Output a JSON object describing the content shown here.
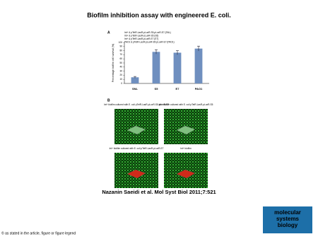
{
  "title": "Biofilm inhibition assay with engineered E. coli.",
  "chart_data": {
    "type": "bar",
    "panel": "A",
    "legend_lines": [
      "Int+ & pTetR-LasR-pLuxR-S5-pLuxR-E7 (SNL)",
      "Int+ & pTetR-LasR-pLuxR-S5 (S5)",
      "Int+ & pTetR-LasR-pLuxR-E7 (E7)",
      "PAO1 & pTetR-LasR-pLuxR-S5-pLuxR-E7 (PAO1)"
    ],
    "y_label": "Percentage biofilm cell survival (%)",
    "categories": [
      "SNL",
      "S5",
      "E7",
      "PAO1"
    ],
    "values": [
      15,
      77,
      75,
      85
    ],
    "errors": [
      2,
      5,
      5,
      6
    ],
    "color": "#6f8fbf",
    "ylim": [
      0,
      100
    ],
    "yticks": [
      0,
      10,
      20,
      30,
      40,
      50,
      60,
      70,
      80,
      90,
      100
    ]
  },
  "panel_b": {
    "label": "B",
    "images": [
      {
        "caption": "Int+ biofilm cultured with E. coli pTetR-LasR-pLuxR-S5-pLuxR-E7"
      },
      {
        "caption": "Int+ biofilm cultured with E. coli pTetR-LasR-pLuxR-S5"
      },
      {
        "caption": "Int+ biofilm cultured with E. coli pTetR-LasR-pLuxR-E7"
      },
      {
        "caption": "Int+ biofilm"
      }
    ]
  },
  "citation": "Nazanin Saeidi et al. Mol Syst Biol 2011;7:521",
  "logo": [
    "molecular",
    "systems",
    "biology"
  ],
  "footer": "© as stated in the article, figure or figure legend"
}
